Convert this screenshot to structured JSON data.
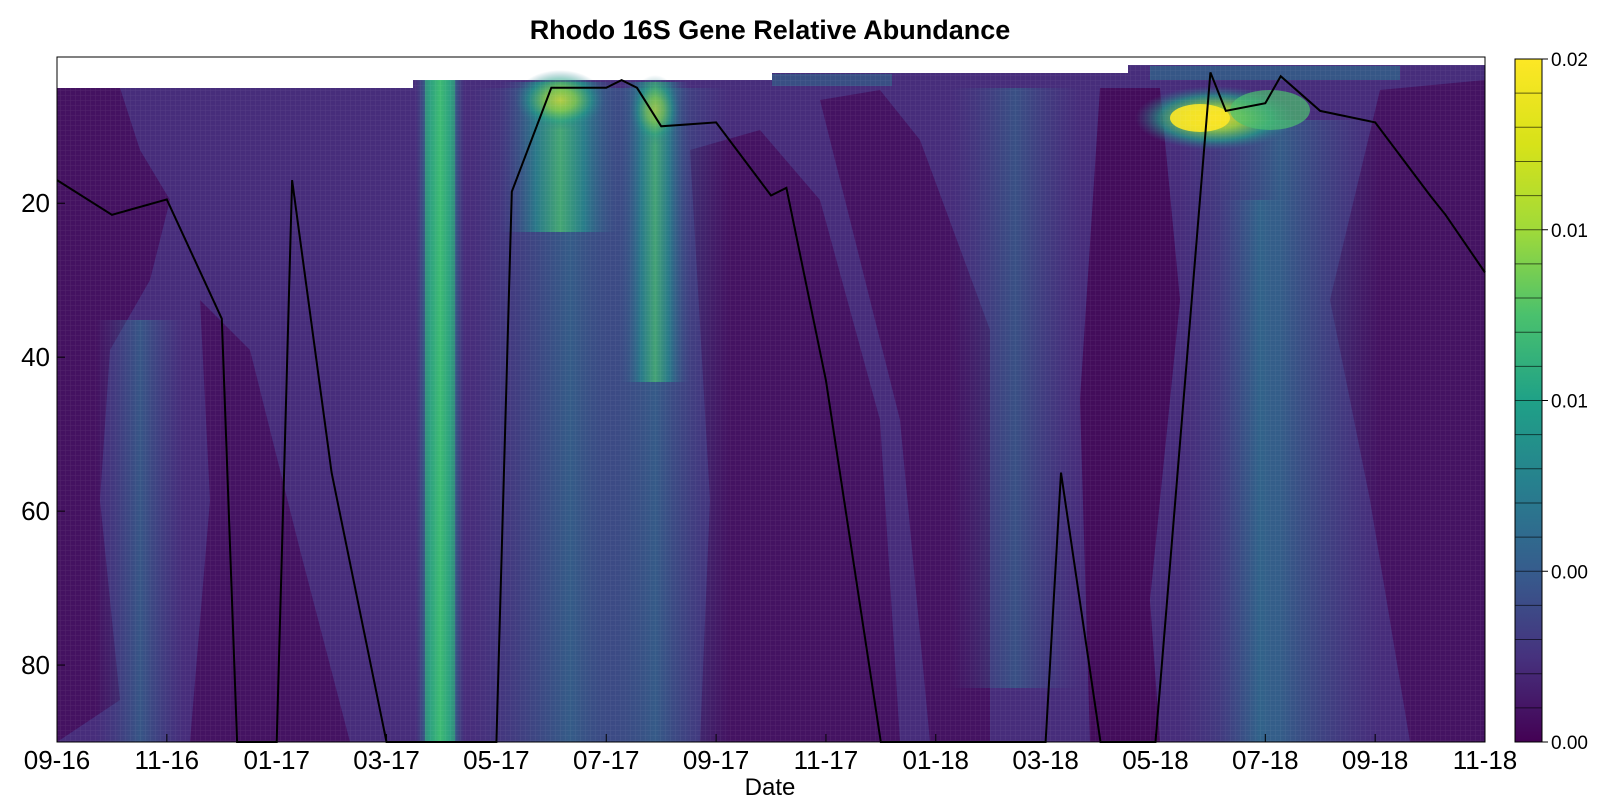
{
  "chart_data": {
    "type": "heatmap",
    "title": "Rhodo 16S Gene Relative Abundance",
    "xlabel": "Date",
    "ylabel": "",
    "x_tick_labels": [
      "09-16",
      "11-16",
      "01-17",
      "03-17",
      "05-17",
      "07-17",
      "09-17",
      "11-17",
      "01-18",
      "03-18",
      "05-18",
      "07-18",
      "09-18",
      "11-18"
    ],
    "y_ticks": [
      20,
      40,
      60,
      80
    ],
    "ylim": [
      90,
      1
    ],
    "y_inverted": true,
    "colorbar": {
      "colormap": "viridis",
      "range": [
        0.0,
        0.02
      ],
      "tick_labels": [
        "0.00",
        "0.00",
        "0.01",
        "0.01",
        "0.02"
      ],
      "levels": 20
    },
    "high_abundance_bands": [
      {
        "date": "04-17",
        "depth_range": [
          4,
          90
        ],
        "intensity": "high"
      },
      {
        "date": "06-17",
        "depth_range": [
          4,
          35
        ],
        "intensity": "medium"
      },
      {
        "date": "08-17",
        "depth_range": [
          4,
          45
        ],
        "intensity": "medium"
      },
      {
        "date": "06-18",
        "depth_range": [
          3,
          14
        ],
        "intensity": "very high"
      },
      {
        "date": "07-18",
        "depth_range": [
          3,
          90
        ],
        "intensity": "medium"
      }
    ],
    "overlay_line": {
      "color": "#000000",
      "points": [
        [
          "09-16",
          17
        ],
        [
          "10-16",
          21.5
        ],
        [
          "11-16",
          19.5
        ],
        [
          "12-16",
          35
        ],
        [
          "12-16",
          90
        ],
        [
          "01-17",
          90
        ],
        [
          "01-17",
          17
        ],
        [
          "02-17",
          55
        ],
        [
          "03-17",
          90
        ],
        [
          "05-17",
          90
        ],
        [
          "05-17",
          18.5
        ],
        [
          "06-17",
          5
        ],
        [
          "07-17",
          5
        ],
        [
          "07-17",
          4
        ],
        [
          "07-17",
          5
        ],
        [
          "08-17",
          10
        ],
        [
          "09-17",
          9.5
        ],
        [
          "10-17",
          19
        ],
        [
          "10-17",
          18
        ],
        [
          "11-17",
          43
        ],
        [
          "12-17",
          90
        ],
        [
          "03-18",
          90
        ],
        [
          "03-18",
          55
        ],
        [
          "04-18",
          90
        ],
        [
          "05-18",
          90
        ],
        [
          "06-18",
          3
        ],
        [
          "06-18",
          8
        ],
        [
          "07-18",
          7
        ],
        [
          "07-18",
          3.5
        ],
        [
          "08-18",
          8
        ],
        [
          "09-18",
          9.5
        ],
        [
          "10-18",
          19
        ],
        [
          "10-18",
          21.5
        ],
        [
          "11-18",
          29
        ]
      ]
    }
  }
}
